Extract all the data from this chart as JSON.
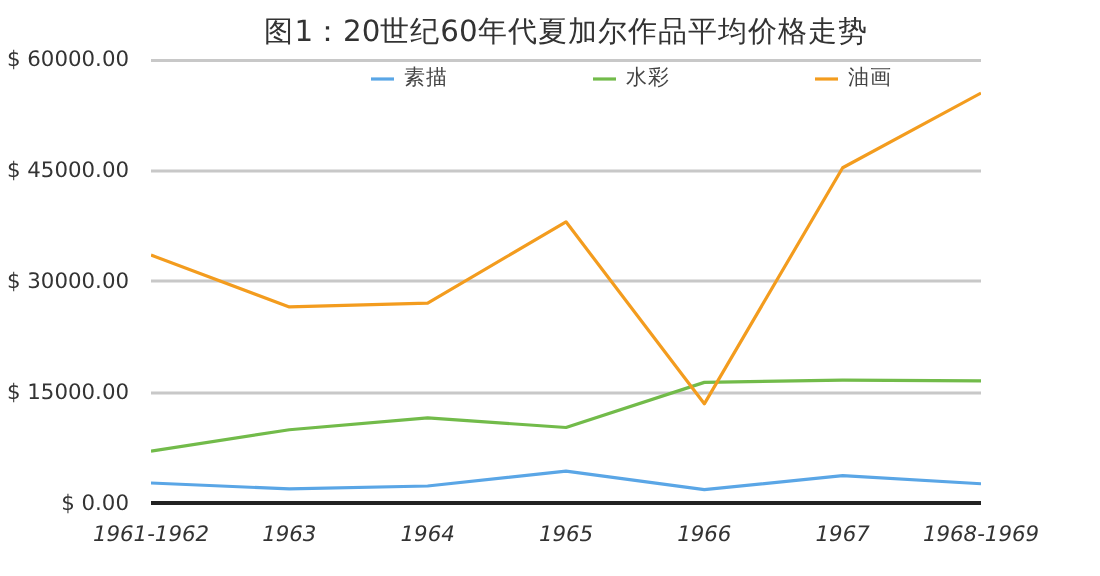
{
  "chart_data": {
    "type": "line",
    "title": "图1：20世纪60年代夏加尔作品平均价格走势",
    "categories": [
      "1961-1962",
      "1963",
      "1964",
      "1965",
      "1966",
      "1967",
      "1968-1969"
    ],
    "series": [
      {
        "name": "素描",
        "color": "#5aa6e6",
        "values": [
          2700,
          1900,
          2300,
          4300,
          1800,
          3700,
          2600
        ]
      },
      {
        "name": "水彩",
        "color": "#72bb4a",
        "values": [
          7000,
          9900,
          11500,
          10200,
          16300,
          16600,
          16500
        ]
      },
      {
        "name": "油画",
        "color": "#f39c1e",
        "values": [
          33500,
          26500,
          27000,
          38000,
          13400,
          45300,
          55400
        ]
      }
    ],
    "ylim": [
      0,
      60000
    ],
    "yticks": [
      {
        "value": 0,
        "label": "$ 0.00"
      },
      {
        "value": 15000,
        "label": "$ 15000.00"
      },
      {
        "value": 30000,
        "label": "$ 30000.00"
      },
      {
        "value": 45000,
        "label": "$ 45000.00"
      },
      {
        "value": 60000,
        "label": "$ 60000.00"
      }
    ],
    "grid": "y",
    "legend": "top",
    "marker": "none",
    "line_style": "solid"
  }
}
